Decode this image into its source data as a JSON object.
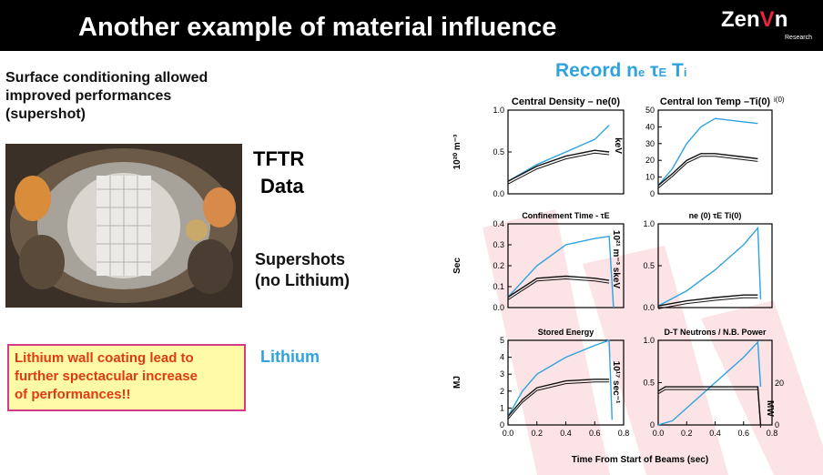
{
  "header": {
    "title": "Another example of material influence",
    "logo_text": "Zen",
    "logo_v": "V",
    "logo_end": "n",
    "logo_sub": "Research"
  },
  "left": {
    "intro_lines": [
      "Surface conditioning allowed",
      "improved performances",
      "(supershot)"
    ],
    "tftr_lines": [
      "TFTR",
      "Data"
    ],
    "supershots_lines": [
      "Supershots",
      "(no Lithium)"
    ],
    "lithium_label": "Lithium",
    "note_lines": [
      "Lithium wall coating lead to",
      "further spectacular increase",
      "of performances!!"
    ]
  },
  "record": {
    "prefix": "Record n",
    "e_sub": "e",
    "tau": "τ",
    "tau_sub": "E",
    "suffix": " T",
    "i_sub": "i"
  },
  "colors": {
    "lithium": "#2ea3e0",
    "supershot": "#111111",
    "accent": "#e8243a",
    "note_bg": "#fffaa6",
    "note_text": "#e23a12"
  },
  "chart_data": [
    {
      "type": "line",
      "title": "Central Density – ne(0)",
      "ylabel": "10²⁰ m⁻³",
      "ylim": [
        0,
        1.0
      ],
      "yticks": [
        "0.0",
        "0.5",
        "1.0"
      ],
      "xticks": [],
      "series": [
        {
          "x": [
            0,
            0.2,
            0.4,
            0.6,
            0.7
          ],
          "y": [
            0.15,
            0.35,
            0.5,
            0.65,
            0.82
          ]
        },
        {
          "x": [
            0,
            0.2,
            0.4,
            0.6,
            0.7
          ],
          "y": [
            0.15,
            0.33,
            0.45,
            0.52,
            0.5
          ]
        }
      ]
    },
    {
      "type": "line",
      "title": "Central Ion Temp –Ti(0)",
      "ylabel": "keV",
      "ylim": [
        0,
        50
      ],
      "yticks": [
        "0",
        "10",
        "20",
        "30",
        "40",
        "50"
      ],
      "xticks": [],
      "series": [
        {
          "x": [
            0,
            0.1,
            0.2,
            0.3,
            0.4,
            0.6,
            0.7
          ],
          "y": [
            5,
            15,
            30,
            40,
            45,
            43,
            42
          ]
        },
        {
          "x": [
            0,
            0.1,
            0.2,
            0.3,
            0.4,
            0.6,
            0.7
          ],
          "y": [
            5,
            12,
            20,
            24,
            24,
            22,
            21
          ]
        }
      ]
    },
    {
      "type": "line",
      "title": "Confinement Time - τE",
      "ylabel": "Sec",
      "ylim": [
        0,
        0.4
      ],
      "yticks": [
        "0.0",
        "0.1",
        "0.2",
        "0.3",
        "0.4"
      ],
      "xticks": [],
      "series": [
        {
          "x": [
            0,
            0.2,
            0.4,
            0.6,
            0.7,
            0.73
          ],
          "y": [
            0.05,
            0.2,
            0.3,
            0.33,
            0.34,
            0.0
          ]
        },
        {
          "x": [
            0,
            0.2,
            0.4,
            0.6,
            0.7
          ],
          "y": [
            0.05,
            0.14,
            0.15,
            0.14,
            0.13
          ]
        }
      ]
    },
    {
      "type": "line",
      "title": "ne (0) τE Ti(0)",
      "ylabel": "10²¹ m⁻³ skeV",
      "ylim": [
        0,
        1.0
      ],
      "yticks": [
        "0.0",
        "0.5",
        "1.0"
      ],
      "xticks": [],
      "series": [
        {
          "x": [
            0,
            0.2,
            0.4,
            0.6,
            0.7,
            0.72
          ],
          "y": [
            0.02,
            0.2,
            0.45,
            0.75,
            0.95,
            0.1
          ]
        },
        {
          "x": [
            0,
            0.2,
            0.4,
            0.6,
            0.7
          ],
          "y": [
            0.02,
            0.08,
            0.12,
            0.15,
            0.15
          ]
        }
      ]
    },
    {
      "type": "line",
      "title": "Stored Energy",
      "ylabel": "MJ",
      "ylim": [
        0,
        5
      ],
      "yticks": [
        "0",
        "1",
        "2",
        "3",
        "4",
        "5"
      ],
      "xticks": [
        "0.0",
        "0.2",
        "0.4",
        "0.6",
        "0.8"
      ],
      "series": [
        {
          "x": [
            0,
            0.1,
            0.2,
            0.4,
            0.6,
            0.7,
            0.72
          ],
          "y": [
            0.5,
            2.0,
            3.0,
            4.0,
            4.7,
            5.0,
            0.3
          ]
        },
        {
          "x": [
            0,
            0.1,
            0.2,
            0.4,
            0.6,
            0.7
          ],
          "y": [
            0.5,
            1.5,
            2.2,
            2.6,
            2.7,
            2.7
          ]
        }
      ]
    },
    {
      "type": "line",
      "title": "D-T Neutrons / N.B. Power",
      "ylabel": "10¹⁷ sec⁻¹",
      "ylim": [
        0,
        1.0
      ],
      "yticks": [
        "0",
        "0.5",
        "1.0"
      ],
      "xticks": [
        "0.0",
        "0.2",
        "0.4",
        "0.6",
        "0.8"
      ],
      "y2ticks": [
        "20",
        "0"
      ],
      "y2label": "MW",
      "series": [
        {
          "x": [
            0,
            0.1,
            0.2,
            0.4,
            0.6,
            0.7,
            0.72
          ],
          "y": [
            0.0,
            0.05,
            0.2,
            0.5,
            0.8,
            0.98,
            0.45
          ]
        },
        {
          "x": [
            0,
            0.05,
            0.7,
            0.72
          ],
          "y": [
            0.4,
            0.45,
            0.45,
            0.0
          ]
        }
      ]
    }
  ],
  "xlabel": "Time From Start of Beams (sec)",
  "plot_extra": {
    "ti_label_suffix": "i(0)"
  }
}
